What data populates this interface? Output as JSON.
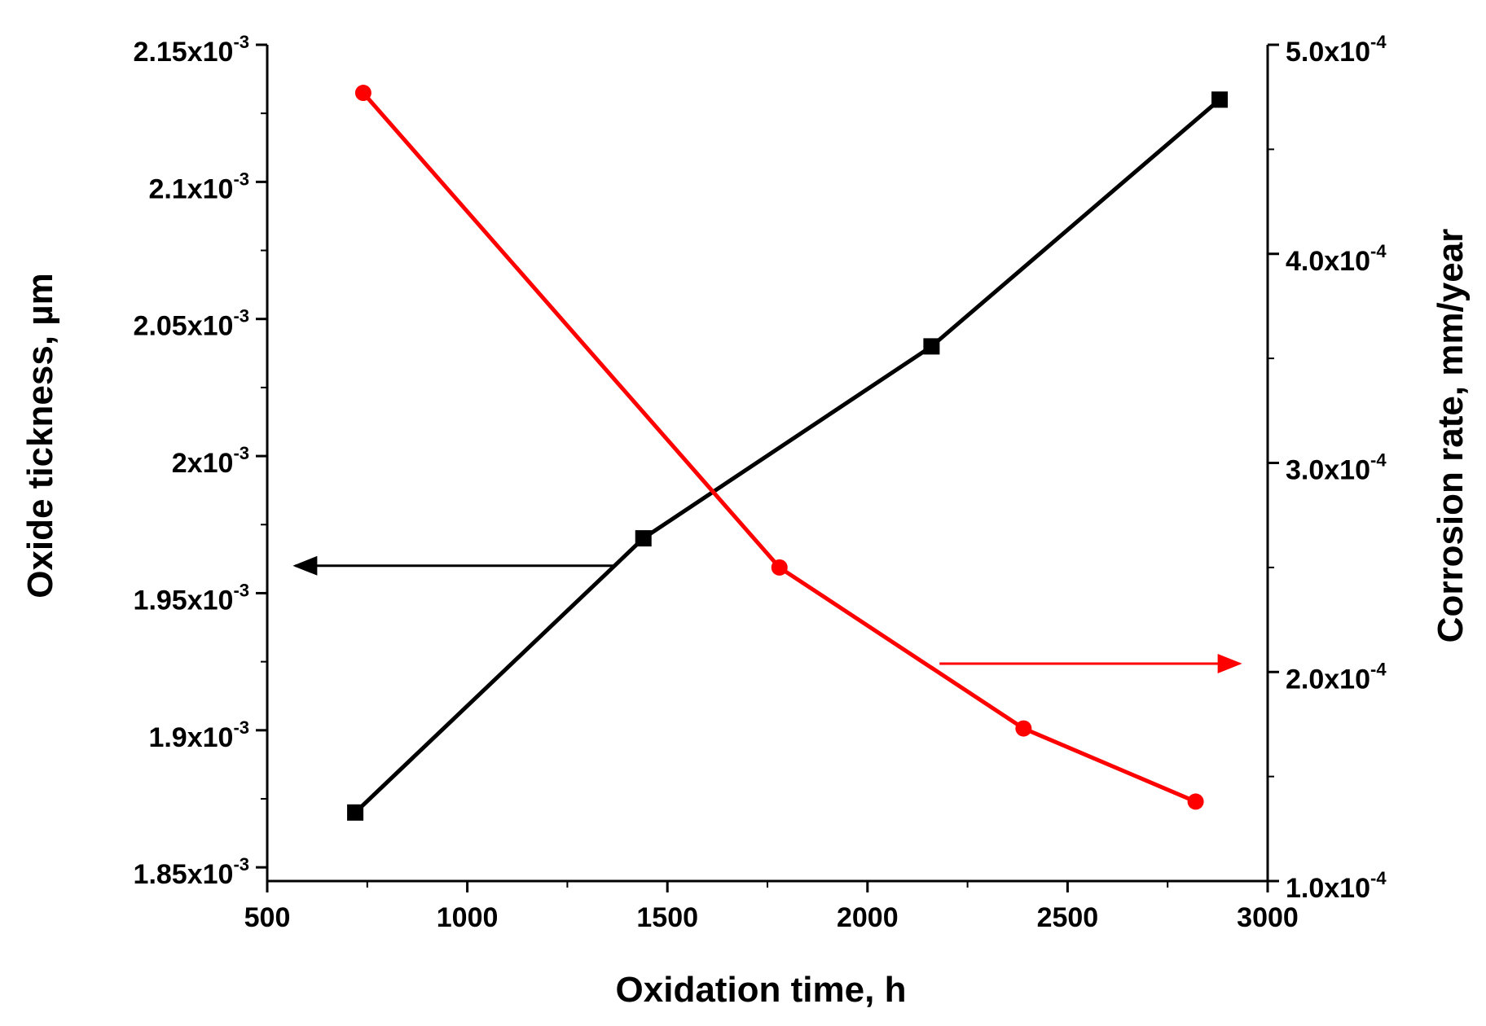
{
  "chart_data": {
    "type": "line",
    "title": "",
    "xlabel": "Oxidation time, h",
    "ylabel": "Oxide tickness, µm",
    "y2label": "Corrosion rate, mm/year",
    "xlim": [
      500,
      3000
    ],
    "ylim": [
      0.001845,
      0.00215
    ],
    "y2lim": [
      0.0001,
      0.0005
    ],
    "x_ticks": [
      {
        "value": 500,
        "label": "500"
      },
      {
        "value": 1000,
        "label": "1000"
      },
      {
        "value": 1500,
        "label": "1500"
      },
      {
        "value": 2000,
        "label": "2000"
      },
      {
        "value": 2500,
        "label": "2500"
      },
      {
        "value": 3000,
        "label": "3000"
      }
    ],
    "y_ticks": [
      {
        "value": 0.00185,
        "mant": "1.85x10",
        "exp": "-3"
      },
      {
        "value": 0.0019,
        "mant": "1.9x10",
        "exp": "-3"
      },
      {
        "value": 0.00195,
        "mant": "1.95x10",
        "exp": "-3"
      },
      {
        "value": 0.002,
        "mant": "2x10",
        "exp": "-3"
      },
      {
        "value": 0.00205,
        "mant": "2.05x10",
        "exp": "-3"
      },
      {
        "value": 0.0021,
        "mant": "2.1x10",
        "exp": "-3"
      },
      {
        "value": 0.00215,
        "mant": "2.15x10",
        "exp": "-3"
      }
    ],
    "y2_ticks": [
      {
        "value": 0.0001,
        "mant": "1.0x10",
        "exp": "-4"
      },
      {
        "value": 0.0002,
        "mant": "2.0x10",
        "exp": "-4"
      },
      {
        "value": 0.0003,
        "mant": "3.0x10",
        "exp": "-4"
      },
      {
        "value": 0.0004,
        "mant": "4.0x10",
        "exp": "-4"
      },
      {
        "value": 0.0005,
        "mant": "5.0x10",
        "exp": "-4"
      }
    ],
    "series": [
      {
        "name": "Oxide tickness",
        "axis": "left",
        "color": "#000000",
        "marker": "square",
        "x": [
          720,
          1440,
          2160,
          2880
        ],
        "y": [
          0.00187,
          0.00197,
          0.00204,
          0.00213
        ]
      },
      {
        "name": "Corrosion rate",
        "axis": "right",
        "color": "#ff0000",
        "marker": "circle",
        "x": [
          740,
          1780,
          2390,
          2820
        ],
        "y": [
          0.000477,
          0.00025,
          0.000173,
          0.000138
        ]
      }
    ],
    "annotations": [
      {
        "type": "arrow",
        "direction": "left",
        "target_axis": "left",
        "color": "#000000",
        "x_from": 1370,
        "x_to": 570,
        "y_axis_value": 0.00196
      },
      {
        "type": "arrow",
        "direction": "right",
        "target_axis": "right",
        "color": "#ff0000",
        "x_from": 2180,
        "x_to": 2930,
        "y_axis_value": 0.000204
      }
    ]
  }
}
